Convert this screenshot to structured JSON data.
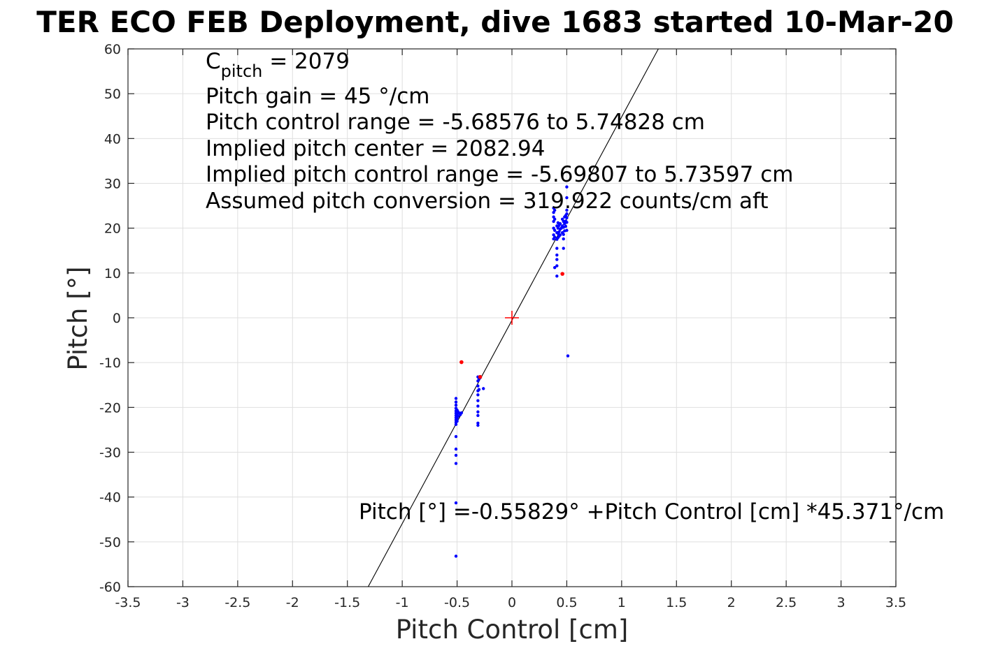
{
  "chart_data": {
    "type": "scatter",
    "title": "TER ECO FEB Deployment, dive 1683 started 10-Mar-20",
    "xlabel": "Pitch Control [cm]",
    "ylabel": "Pitch [°]",
    "xlim": [
      -3.5,
      3.5
    ],
    "ylim": [
      -60,
      60
    ],
    "xticks": [
      -3.5,
      -3,
      -2.5,
      -2,
      -1.5,
      -1,
      -0.5,
      0,
      0.5,
      1,
      1.5,
      2,
      2.5,
      3,
      3.5
    ],
    "xtick_labels": [
      "-3.5",
      "-3",
      "-2.5",
      "-2",
      "-1.5",
      "-1",
      "-0.5",
      "0",
      "0.5",
      "1",
      "1.5",
      "2",
      "2.5",
      "3",
      "3.5"
    ],
    "yticks": [
      -60,
      -50,
      -40,
      -30,
      -20,
      -10,
      0,
      10,
      20,
      30,
      40,
      50,
      60
    ],
    "ytick_labels": [
      "-60",
      "-50",
      "-40",
      "-30",
      "-20",
      "-10",
      "0",
      "10",
      "20",
      "30",
      "40",
      "50",
      "60"
    ],
    "grid": true,
    "annotations": {
      "cpitch_main": "C",
      "cpitch_sub": "pitch",
      "cpitch_value": " = 2079",
      "lines": [
        "Pitch gain = 45 °/cm",
        "Pitch control range = -5.68576 to 5.74828 cm",
        "Implied pitch center = 2082.94",
        "Implied pitch control range = -5.69807 to 5.73597 cm",
        "Assumed pitch conversion = 319.922 counts/cm aft"
      ],
      "fit_equation": "Pitch [°] =-0.55829° +Pitch Control [cm] *45.371°/cm"
    },
    "fit_line": {
      "intercept": -0.55829,
      "slope": 45.371,
      "color": "#000000"
    },
    "center_marker": {
      "x": 0,
      "y": 0,
      "color": "#ff0000"
    },
    "series": [
      {
        "color": "#0000ff",
        "points": [
          [
            -0.51,
            -18.0
          ],
          [
            -0.51,
            -18.8
          ],
          [
            -0.51,
            -19.5
          ],
          [
            -0.51,
            -20.2
          ],
          [
            -0.51,
            -20.8
          ],
          [
            -0.51,
            -21.3
          ],
          [
            -0.51,
            -21.8
          ],
          [
            -0.51,
            -22.3
          ],
          [
            -0.51,
            -22.8
          ],
          [
            -0.51,
            -23.3
          ],
          [
            -0.51,
            -23.8
          ],
          [
            -0.5,
            -20.6
          ],
          [
            -0.5,
            -21.5
          ],
          [
            -0.5,
            -22.1
          ],
          [
            -0.5,
            -22.6
          ],
          [
            -0.5,
            -23.1
          ],
          [
            -0.49,
            -21.0
          ],
          [
            -0.49,
            -22.0
          ],
          [
            -0.48,
            -21.3
          ],
          [
            -0.47,
            -21.6
          ],
          [
            -0.46,
            -21.2
          ],
          [
            -0.51,
            -26.5
          ],
          [
            -0.51,
            -29.3
          ],
          [
            -0.51,
            -30.7
          ],
          [
            -0.51,
            -32.5
          ],
          [
            -0.51,
            -41.3
          ],
          [
            -0.51,
            -53.2
          ],
          [
            -0.31,
            -13.2
          ],
          [
            -0.31,
            -14.1
          ],
          [
            -0.31,
            -15.2
          ],
          [
            -0.31,
            -16.3
          ],
          [
            -0.31,
            -17.2
          ],
          [
            -0.31,
            -18.5
          ],
          [
            -0.31,
            -19.7
          ],
          [
            -0.31,
            -21.0
          ],
          [
            -0.31,
            -21.8
          ],
          [
            -0.31,
            -23.5
          ],
          [
            -0.31,
            -24.0
          ],
          [
            -0.3,
            -13.6
          ],
          [
            -0.3,
            -16.0
          ],
          [
            -0.29,
            -13.4
          ],
          [
            -0.26,
            -15.8
          ],
          [
            0.38,
            24.5
          ],
          [
            0.38,
            23.5
          ],
          [
            0.38,
            22.5
          ],
          [
            0.38,
            21.5
          ],
          [
            0.38,
            20.0
          ],
          [
            0.38,
            18.5
          ],
          [
            0.38,
            17.6
          ],
          [
            0.39,
            24.0
          ],
          [
            0.39,
            22.0
          ],
          [
            0.39,
            19.5
          ],
          [
            0.39,
            18.0
          ],
          [
            0.39,
            11.2
          ],
          [
            0.41,
            20.5
          ],
          [
            0.41,
            19.0
          ],
          [
            0.41,
            17.5
          ],
          [
            0.41,
            15.5
          ],
          [
            0.41,
            14.0
          ],
          [
            0.41,
            13.0
          ],
          [
            0.41,
            11.6
          ],
          [
            0.41,
            9.3
          ],
          [
            0.42,
            21.2
          ],
          [
            0.42,
            20.0
          ],
          [
            0.42,
            18.8
          ],
          [
            0.42,
            17.9
          ],
          [
            0.43,
            20.6
          ],
          [
            0.43,
            19.2
          ],
          [
            0.43,
            18.2
          ],
          [
            0.44,
            21.0
          ],
          [
            0.44,
            19.8
          ],
          [
            0.44,
            18.5
          ],
          [
            0.45,
            20.0
          ],
          [
            0.46,
            22.0
          ],
          [
            0.46,
            20.5
          ],
          [
            0.46,
            19.0
          ],
          [
            0.47,
            21.5
          ],
          [
            0.47,
            20.2
          ],
          [
            0.47,
            18.6
          ],
          [
            0.47,
            17.6
          ],
          [
            0.47,
            15.5
          ],
          [
            0.48,
            22.5
          ],
          [
            0.48,
            21.0
          ],
          [
            0.48,
            19.4
          ],
          [
            0.49,
            22.8
          ],
          [
            0.49,
            21.6
          ],
          [
            0.49,
            20.4
          ],
          [
            0.5,
            29.2
          ],
          [
            0.5,
            26.8
          ],
          [
            0.5,
            24.0
          ],
          [
            0.5,
            23.2
          ],
          [
            0.5,
            22.3
          ],
          [
            0.5,
            21.3
          ],
          [
            0.5,
            19.5
          ],
          [
            0.51,
            -8.5
          ]
        ]
      },
      {
        "color": "#ff0000",
        "points": [
          [
            -0.46,
            -9.9
          ],
          [
            -0.29,
            -13.2
          ],
          [
            0.46,
            9.8
          ]
        ]
      }
    ]
  }
}
